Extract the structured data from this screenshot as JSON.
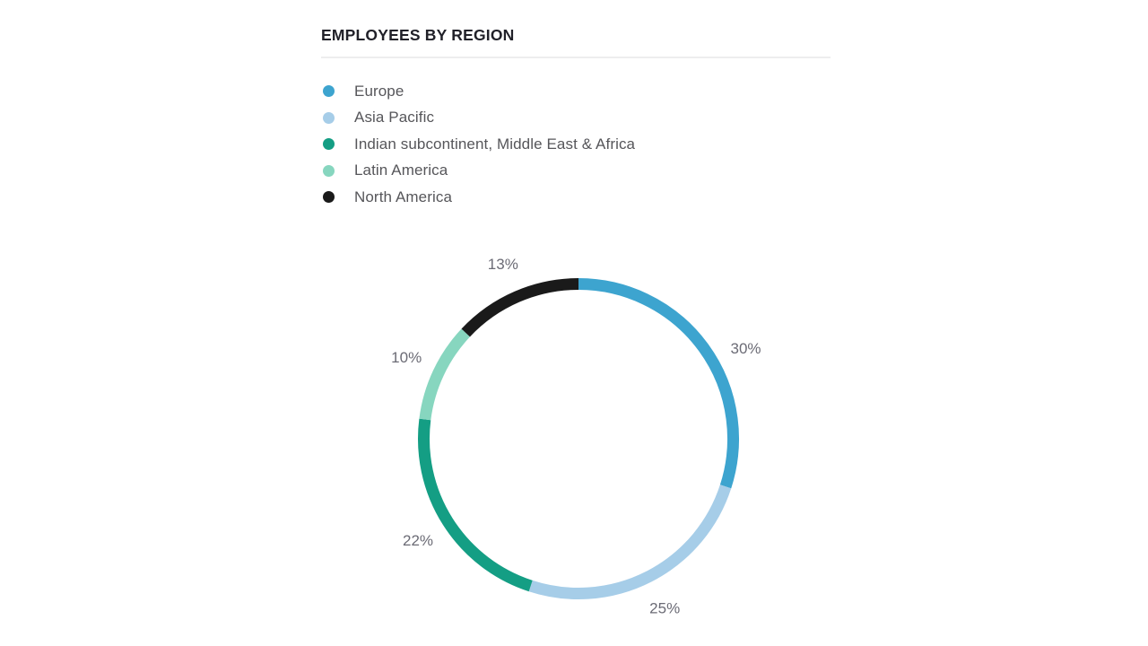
{
  "chart_data": {
    "type": "pie",
    "donut": true,
    "title": "EMPLOYEES BY REGION",
    "start_angle_deg": 0,
    "direction": "clockwise",
    "value_suffix": "%",
    "legend_position": "top-left",
    "slices": [
      {
        "id": "europe",
        "label": "Europe",
        "value": 30,
        "color": "#3da4cf"
      },
      {
        "id": "asia-pacific",
        "label": "Asia Pacific",
        "value": 25,
        "color": "#a6cde8"
      },
      {
        "id": "imea",
        "label": "Indian subcontinent, Middle East & Africa",
        "value": 22,
        "color": "#149e84"
      },
      {
        "id": "latin-america",
        "label": "Latin America",
        "value": 10,
        "color": "#87d6bf"
      },
      {
        "id": "north-america",
        "label": "North America",
        "value": 13,
        "color": "#1a1a1a"
      }
    ],
    "labels": [
      "30%",
      "25%",
      "22%",
      "10%",
      "13%"
    ]
  },
  "style": {
    "title_color": "#212129",
    "legend_text_color": "#56565a",
    "percent_label_color": "#6b6b75",
    "divider_color": "#ededee",
    "background": "#ffffff"
  }
}
